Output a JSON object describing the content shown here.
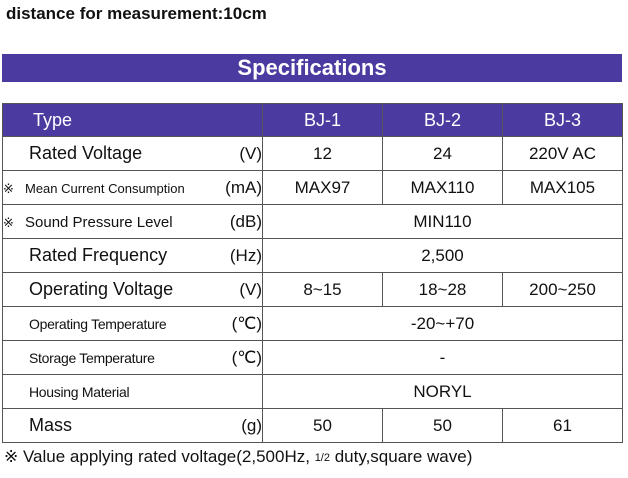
{
  "top_note": "distance for measurement:10cm",
  "banner_title": "Specifications",
  "table": {
    "type_header": "Type",
    "models": [
      "BJ-1",
      "BJ-2",
      "BJ-3"
    ],
    "rows": [
      {
        "mark": "",
        "label": "Rated Voltage",
        "unit": "(V)",
        "values": [
          "12",
          "24",
          "220V AC"
        ]
      },
      {
        "mark": "※",
        "label": "Mean Current Consumption",
        "unit": "(mA)",
        "values": [
          "MAX97",
          "MAX110",
          "MAX105"
        ]
      },
      {
        "mark": "※",
        "label": "Sound Pressure Level",
        "unit": "(dB)",
        "value_all": "MIN110"
      },
      {
        "mark": "",
        "label": "Rated Frequency",
        "unit": "(Hz)",
        "value_all": "2,500"
      },
      {
        "mark": "",
        "label": "Operating Voltage",
        "unit": "(V)",
        "values": [
          "8~15",
          "18~28",
          "200~250"
        ]
      },
      {
        "mark": "",
        "label": "Operating Temperature",
        "unit": "(℃)",
        "value_all": "-20~+70"
      },
      {
        "mark": "",
        "label": "Storage Temperature",
        "unit": "(℃)",
        "value_all": "-"
      },
      {
        "mark": "",
        "label": "Housing Material",
        "unit": "",
        "value_all": "NORYL"
      },
      {
        "mark": "",
        "label": "Mass",
        "unit": "(g)",
        "values": [
          "50",
          "50",
          "61"
        ]
      }
    ]
  },
  "bottom_note": {
    "prefix": "※ Value applying rated voltage(2,500Hz, ",
    "fraction": "1/2",
    "suffix": " duty,square wave)"
  },
  "colors": {
    "banner": "#4b3aa0",
    "header_row": "#4b3aa0"
  }
}
